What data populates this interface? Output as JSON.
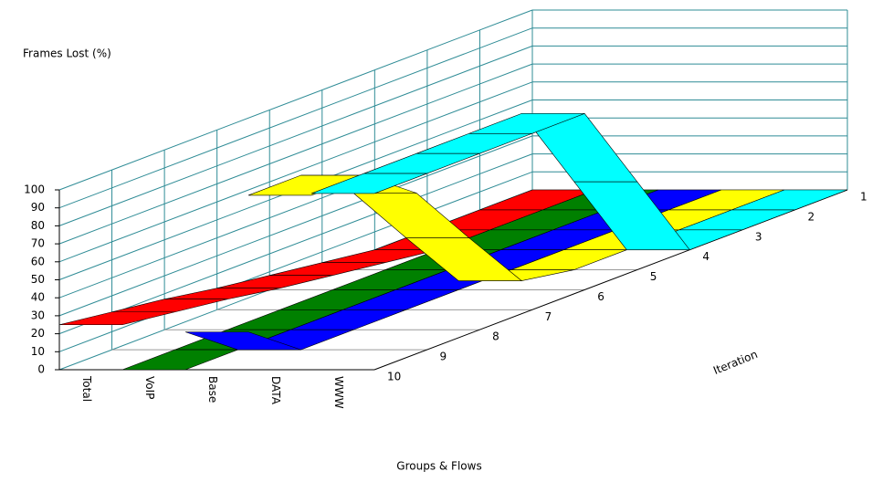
{
  "chart_data": {
    "type": "ribbon3d",
    "ylabel": "Frames Lost (%)",
    "xlabel": "Groups & Flows",
    "zlabel": "Iteration",
    "x": [
      1,
      2,
      3,
      4,
      5,
      6,
      7,
      8,
      9,
      10
    ],
    "series": [
      {
        "name": "Total",
        "color": "#ff0000",
        "values": [
          0,
          0,
          0,
          0,
          4,
          8,
          12,
          17,
          21,
          25
        ]
      },
      {
        "name": "VoIP",
        "color": "#008000",
        "values": [
          0,
          0,
          0,
          0,
          0,
          0,
          0,
          0,
          0,
          0
        ]
      },
      {
        "name": "Base",
        "color": "#0000ff",
        "values": [
          0,
          0,
          0,
          0,
          0,
          0,
          0,
          0,
          0,
          21
        ]
      },
      {
        "name": "DATA",
        "color": "#ffff00",
        "values": [
          0,
          0,
          0,
          0,
          0,
          5,
          40,
          76,
          97,
          97
        ]
      },
      {
        "name": "WWW",
        "color": "#00ffff",
        "values": [
          0,
          0,
          0,
          0,
          49,
          98,
          98,
          98,
          98,
          98
        ]
      }
    ],
    "ylim": [
      0,
      100
    ],
    "yticks": [
      0,
      10,
      20,
      30,
      40,
      50,
      60,
      70,
      80,
      90,
      100
    ],
    "grid": true
  }
}
